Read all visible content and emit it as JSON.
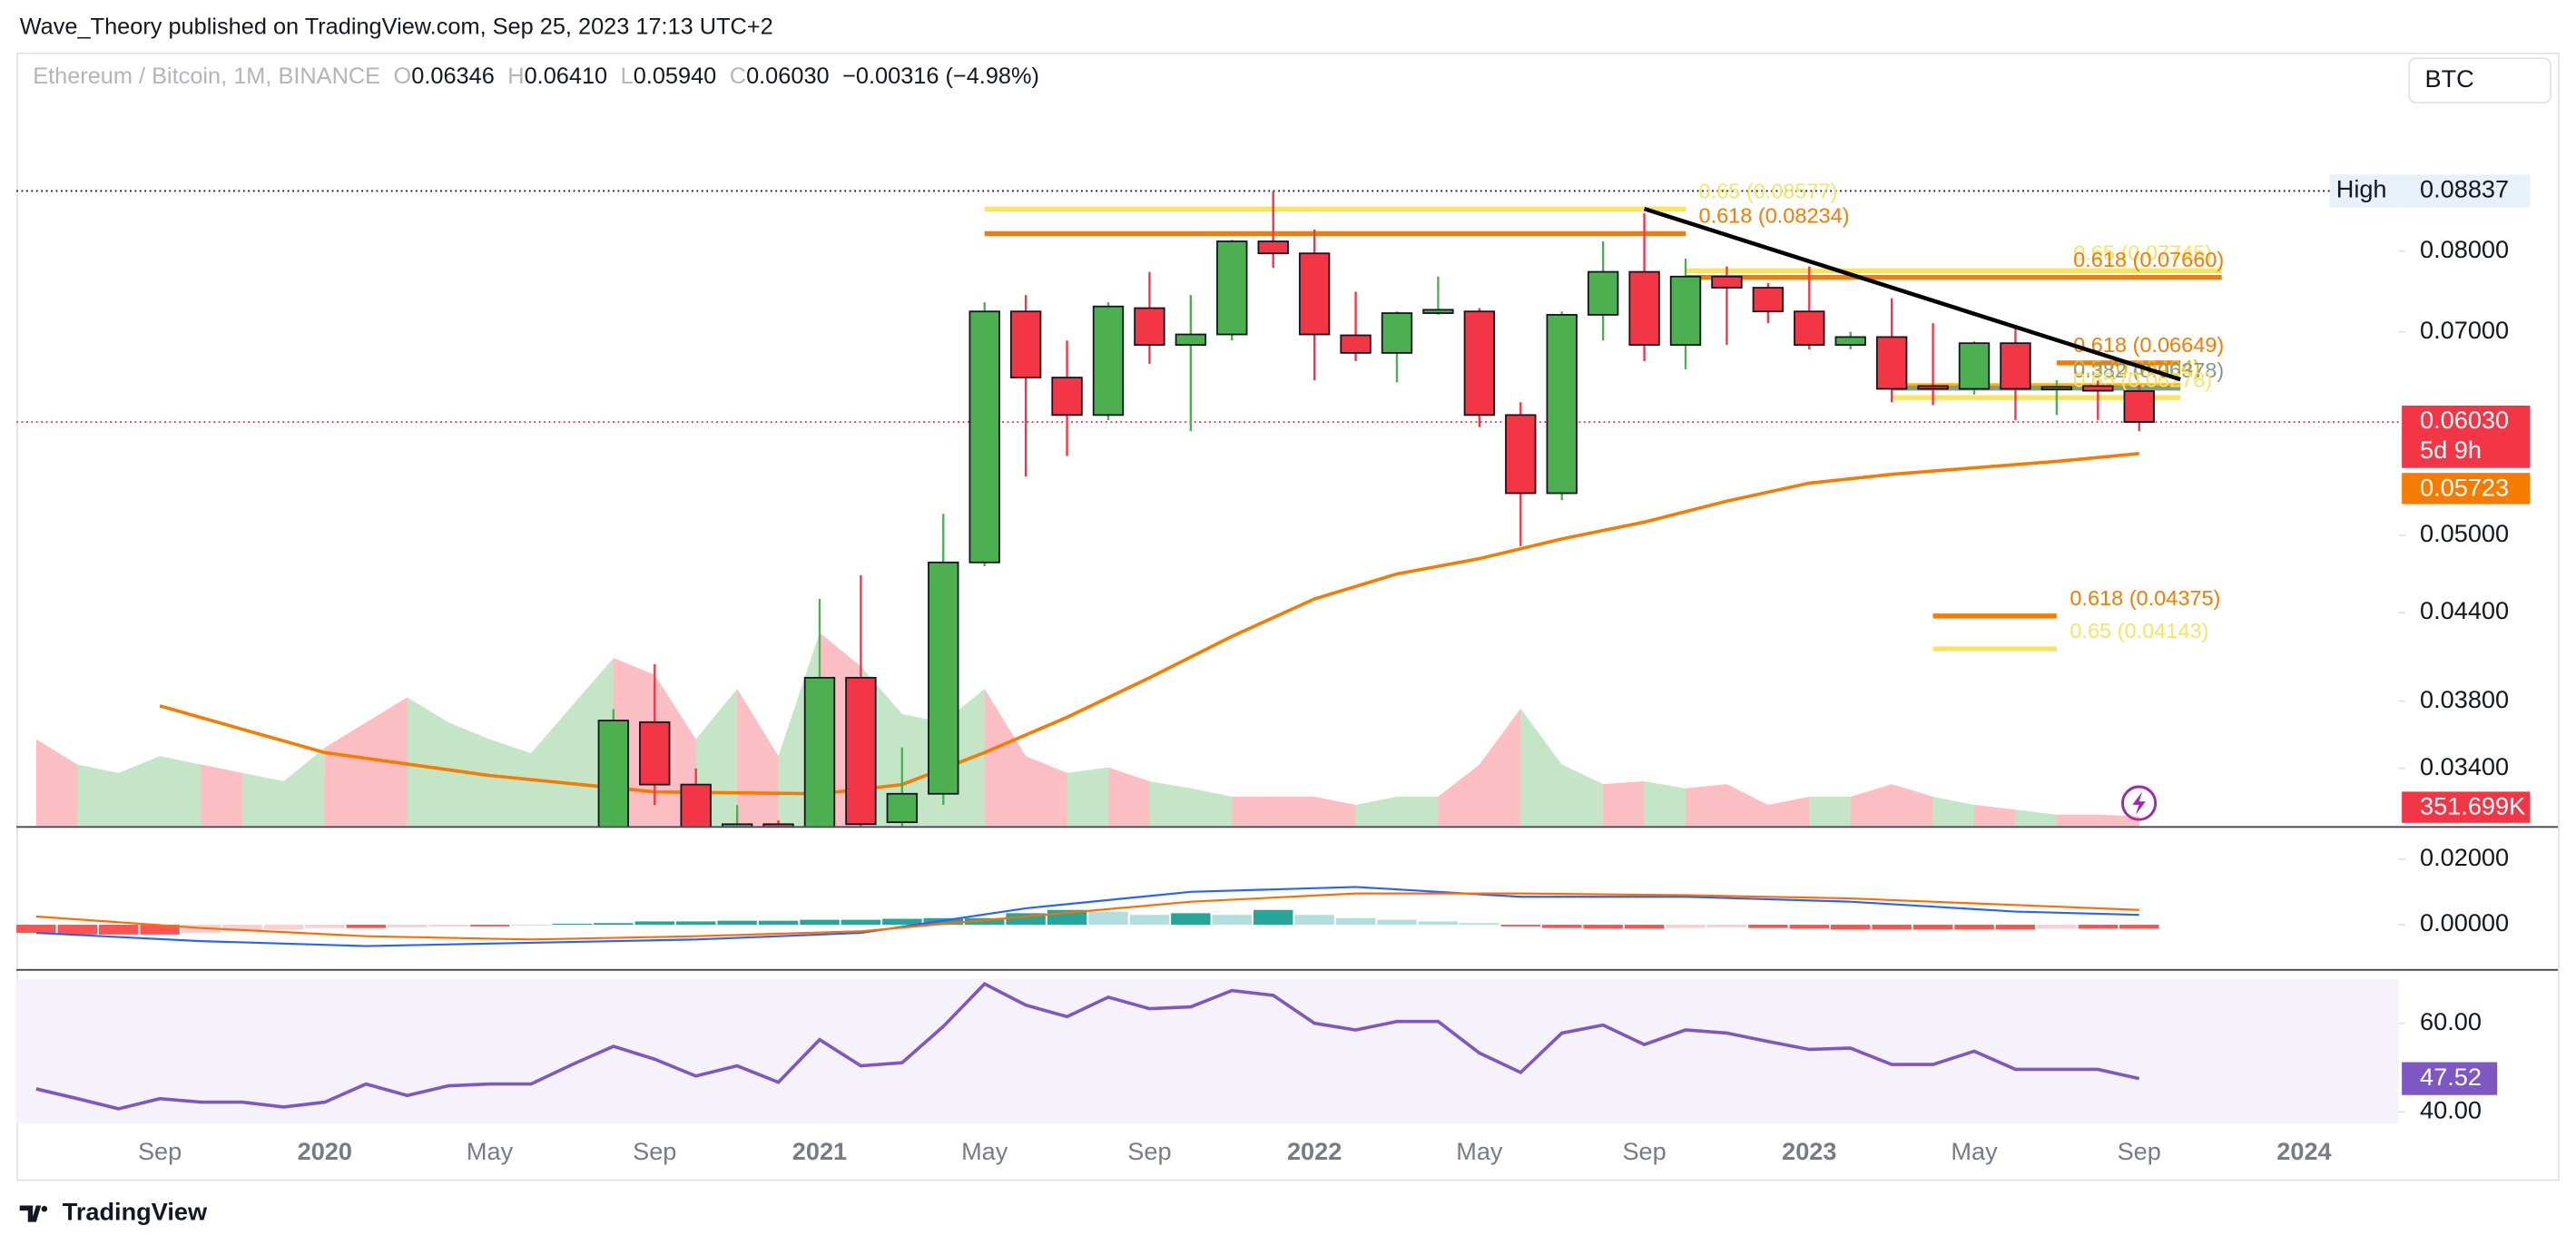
{
  "header": {
    "text": "Wave_Theory published on TradingView.com, Sep 25, 2023 17:13 UTC+2"
  },
  "footer": {
    "brand": "TradingView"
  },
  "toolbar": {
    "currency": "BTC"
  },
  "chart_data": {
    "type": "candlestick",
    "legend": {
      "symbol": "Ethereum / Bitcoin, 1M, BINANCE",
      "fields": [
        {
          "key": "O",
          "value": "0.06346"
        },
        {
          "key": "H",
          "value": "0.06410"
        },
        {
          "key": "L",
          "value": "0.05940"
        },
        {
          "key": "C",
          "value": "0.06030"
        }
      ],
      "change": "−0.00316 (−4.98%)"
    },
    "log_scale": true,
    "grid": false,
    "ylim": [
      0.0309,
      0.1111
    ],
    "yticks": [
      {
        "value": 0.08,
        "label": "0.08000"
      },
      {
        "value": 0.07,
        "label": "0.07000"
      },
      {
        "value": 0.05,
        "label": "0.05000"
      },
      {
        "value": 0.044,
        "label": "0.04400"
      },
      {
        "value": 0.038,
        "label": "0.03800"
      },
      {
        "value": 0.034,
        "label": "0.03400"
      }
    ],
    "xticks": [
      {
        "value": "2019-09",
        "label": "Sep"
      },
      {
        "value": "2020-01",
        "label": "2020"
      },
      {
        "value": "2020-05",
        "label": "May"
      },
      {
        "value": "2020-09",
        "label": "Sep"
      },
      {
        "value": "2021-01",
        "label": "2021"
      },
      {
        "value": "2021-05",
        "label": "May"
      },
      {
        "value": "2021-09",
        "label": "Sep"
      },
      {
        "value": "2022-01",
        "label": "2022"
      },
      {
        "value": "2022-05",
        "label": "May"
      },
      {
        "value": "2022-09",
        "label": "Sep"
      },
      {
        "value": "2023-01",
        "label": "2023"
      },
      {
        "value": "2023-05",
        "label": "May"
      },
      {
        "value": "2023-09",
        "label": "Sep"
      },
      {
        "value": "2024-01",
        "label": "2024"
      }
    ],
    "months": [
      "2019-06",
      "2019-07",
      "2019-08",
      "2019-09",
      "2019-10",
      "2019-11",
      "2019-12",
      "2020-01",
      "2020-02",
      "2020-03",
      "2020-04",
      "2020-05",
      "2020-06",
      "2020-07",
      "2020-08",
      "2020-09",
      "2020-10",
      "2020-11",
      "2020-12",
      "2021-01",
      "2021-02",
      "2021-03",
      "2021-04",
      "2021-05",
      "2021-06",
      "2021-07",
      "2021-08",
      "2021-09",
      "2021-10",
      "2021-11",
      "2021-12",
      "2022-01",
      "2022-02",
      "2022-03",
      "2022-04",
      "2022-05",
      "2022-06",
      "2022-07",
      "2022-08",
      "2022-09",
      "2022-10",
      "2022-11",
      "2022-12",
      "2023-01",
      "2023-02",
      "2023-03",
      "2023-04",
      "2023-05",
      "2023-06",
      "2023-07",
      "2023-08",
      "2023-09"
    ],
    "up_color": "#4caf50",
    "down_color": "#f23645",
    "x": [
      "2020-08",
      "2020-09",
      "2020-10",
      "2020-11",
      "2020-12",
      "2021-01",
      "2021-02",
      "2021-03",
      "2021-04",
      "2021-05",
      "2021-06",
      "2021-07",
      "2021-08",
      "2021-09",
      "2021-10",
      "2021-11",
      "2021-12",
      "2022-01",
      "2022-02",
      "2022-03",
      "2022-04",
      "2022-05",
      "2022-06",
      "2022-07",
      "2022-08",
      "2022-09",
      "2022-10",
      "2022-11",
      "2022-12",
      "2023-01",
      "2023-02",
      "2023-03",
      "2023-04",
      "2023-05",
      "2023-06",
      "2023-07",
      "2023-08",
      "2023-09"
    ],
    "open": [
      0.0295,
      0.0367,
      0.0331,
      0.03,
      0.031,
      0.03,
      0.0395,
      0.0311,
      0.0326,
      0.0478,
      0.0724,
      0.0649,
      0.061,
      0.0728,
      0.0685,
      0.0697,
      0.0813,
      0.0797,
      0.0696,
      0.0676,
      0.0722,
      0.0724,
      0.061,
      0.0536,
      0.072,
      0.0773,
      0.0685,
      0.0767,
      0.0753,
      0.0724,
      0.0685,
      0.0694,
      0.064,
      0.0637,
      0.0687,
      0.0637,
      0.064,
      0.06346
    ],
    "high": [
      0.0375,
      0.0404,
      0.034,
      0.032,
      0.0312,
      0.045,
      0.0468,
      0.0352,
      0.0518,
      0.0735,
      0.0744,
      0.069,
      0.0735,
      0.0773,
      0.0744,
      0.0815,
      0.08837,
      0.0829,
      0.0748,
      0.0724,
      0.0767,
      0.0728,
      0.0623,
      0.0724,
      0.0813,
      0.0852,
      0.079,
      0.078,
      0.0759,
      0.078,
      0.07,
      0.074,
      0.071,
      0.0689,
      0.0705,
      0.0646,
      0.0646,
      0.0641
    ],
    "low": [
      0.029,
      0.032,
      0.029,
      0.029,
      0.029,
      0.029,
      0.03,
      0.03,
      0.032,
      0.0475,
      0.0551,
      0.057,
      0.0605,
      0.0664,
      0.0594,
      0.069,
      0.0778,
      0.0646,
      0.0667,
      0.0644,
      0.072,
      0.0598,
      0.0491,
      0.053,
      0.069,
      0.0667,
      0.0658,
      0.0685,
      0.071,
      0.068,
      0.068,
      0.0623,
      0.062,
      0.0631,
      0.0605,
      0.061,
      0.0605,
      0.0594
    ],
    "close": [
      0.0368,
      0.0331,
      0.03,
      0.031,
      0.03,
      0.0395,
      0.031,
      0.0326,
      0.0478,
      0.0724,
      0.0649,
      0.061,
      0.073,
      0.0685,
      0.0697,
      0.0813,
      0.0797,
      0.0697,
      0.0676,
      0.0722,
      0.0726,
      0.061,
      0.0536,
      0.072,
      0.0773,
      0.0685,
      0.0767,
      0.0753,
      0.0724,
      0.0685,
      0.0694,
      0.0637,
      0.0637,
      0.0687,
      0.0637,
      0.0639,
      0.0635,
      0.0603
    ],
    "high_marker": {
      "label": "High",
      "value": 0.08837
    },
    "price_labels": [
      {
        "value": 0.0603,
        "label": "0.06030",
        "note": "5d 9h",
        "color": "#f23645"
      },
      {
        "value": 0.05723,
        "label": "0.05723",
        "color": "#f57c00"
      }
    ],
    "ema": {
      "color": "#f57c00",
      "x": [
        "2019-09",
        "2020-01",
        "2020-05",
        "2020-09",
        "2021-01",
        "2021-03",
        "2021-05",
        "2021-07",
        "2021-09",
        "2021-11",
        "2022-01",
        "2022-03",
        "2022-05",
        "2022-07",
        "2022-09",
        "2022-11",
        "2023-01",
        "2023-03",
        "2023-05",
        "2023-07",
        "2023-09"
      ],
      "values": [
        0.0377,
        0.0349,
        0.0336,
        0.0327,
        0.0326,
        0.0331,
        0.0349,
        0.037,
        0.0395,
        0.0423,
        0.045,
        0.0469,
        0.0481,
        0.0497,
        0.0511,
        0.0529,
        0.0545,
        0.0553,
        0.0559,
        0.0565,
        0.05723
      ]
    },
    "levels": [
      {
        "label": "0.65 (0.08577)",
        "value": 0.08577,
        "from": "2021-05",
        "to": "2022-10",
        "color": "#f7e463"
      },
      {
        "label": "0.618 (0.08234)",
        "value": 0.08234,
        "from": "2021-05",
        "to": "2022-10",
        "color": "#f57c00"
      },
      {
        "label": "0.65 (0.07745)",
        "value": 0.07745,
        "from": "2022-10",
        "to": "2023-11",
        "color": "#f7e463"
      },
      {
        "label": "0.618 (0.07660)",
        "value": 0.0766,
        "from": "2022-10",
        "to": "2023-11",
        "color": "#f57c00"
      },
      {
        "label": "0.618 (0.06649)",
        "value": 0.06649,
        "from": "2023-07",
        "to": "2023-10",
        "color": "#f57c00"
      },
      {
        "label": "0.5 (0.06404)",
        "value": 0.06404,
        "from": "2023-03",
        "to": "2023-10",
        "color": "#ffb300"
      },
      {
        "label": "0.382 (0.06378)",
        "value": 0.06378,
        "from": "2023-03",
        "to": "2023-10",
        "color": "#7f9c86"
      },
      {
        "label": "0.65 (0.06278)",
        "value": 0.06278,
        "from": "2023-03",
        "to": "2023-10",
        "color": "#f7e463"
      },
      {
        "label": "0.618 (0.04375)",
        "value": 0.04375,
        "from": "2023-04",
        "to": "2023-07",
        "color": "#f57c00"
      },
      {
        "label": "0.65 (0.04143)",
        "value": 0.04143,
        "from": "2023-04",
        "to": "2023-07",
        "color": "#f7e463"
      }
    ],
    "trendline": {
      "x": [
        "2022-09",
        "2023-10"
      ],
      "values": [
        0.0858,
        0.0647
      ],
      "color": "#000000"
    },
    "volume": {
      "ylim": [
        0,
        27600000
      ],
      "values": [
        3100000,
        2200000,
        1900000,
        2500000,
        2200000,
        1900000,
        1600000,
        2800000,
        3700000,
        4600000,
        3700000,
        3100000,
        2600000,
        4300000,
        6000000,
        5400000,
        3100000,
        4900000,
        2500000,
        6900000,
        5700000,
        4000000,
        3700000,
        4900000,
        2500000,
        1900000,
        2100000,
        1600000,
        1350000,
        1050000,
        1050000,
        1050000,
        760000,
        1050000,
        1050000,
        2200000,
        4200000,
        2200000,
        1500000,
        1600000,
        1350000,
        1500000,
        760000,
        1050000,
        1050000,
        1500000,
        1050000,
        760000,
        590000,
        410000,
        410000,
        351699
      ],
      "up": [
        false,
        false,
        true,
        true,
        true,
        false,
        true,
        true,
        false,
        false,
        true,
        true,
        true,
        true,
        true,
        false,
        false,
        true,
        false,
        true,
        false,
        true,
        true,
        true,
        false,
        false,
        true,
        false,
        true,
        true,
        false,
        false,
        false,
        true,
        true,
        false,
        false,
        true,
        true,
        false,
        true,
        false,
        false,
        false,
        true,
        false,
        false,
        true,
        false,
        true,
        false,
        false
      ],
      "last_label": {
        "value": 351699,
        "label": "351.699K"
      }
    },
    "macd": {
      "ylim": [
        -0.0125,
        0.029
      ],
      "yticks": [
        {
          "value": 0.02,
          "label": "0.02000"
        },
        {
          "value": 0,
          "label": "0.00000"
        }
      ],
      "x": [
        "2019-06",
        "2019-10",
        "2020-02",
        "2020-06",
        "2020-10",
        "2021-02",
        "2021-06",
        "2021-10",
        "2022-02",
        "2022-06",
        "2022-10",
        "2023-02",
        "2023-06",
        "2023-09"
      ],
      "macd": [
        -0.0025,
        -0.005,
        -0.0065,
        -0.0055,
        -0.0045,
        -0.0025,
        0.005,
        0.01,
        0.0115,
        0.0085,
        0.0085,
        0.007,
        0.004,
        0.003
      ],
      "signal": [
        0.0025,
        -0.001,
        -0.0035,
        -0.0045,
        -0.0035,
        -0.002,
        0.0025,
        0.007,
        0.0095,
        0.0095,
        0.009,
        0.008,
        0.006,
        0.0045
      ],
      "macd_color": "#2962ff",
      "signal_color": "#ff6d00",
      "histogram": [
        -0.0025,
        -0.003,
        -0.003,
        -0.003,
        -0.0025,
        -0.002,
        -0.0015,
        -0.001,
        -0.001,
        -0.0008,
        -0.0005,
        -0.0005,
        -0.0003,
        0.0003,
        0.0005,
        0.001,
        0.001,
        0.0012,
        0.0012,
        0.0015,
        0.0015,
        0.0018,
        0.002,
        0.002,
        0.0035,
        0.0045,
        0.004,
        0.003,
        0.0035,
        0.003,
        0.0045,
        0.003,
        0.002,
        0.0015,
        0.001,
        0.0005,
        -0.0005,
        -0.001,
        -0.0012,
        -0.0012,
        -0.001,
        -0.0008,
        -0.001,
        -0.0012,
        -0.0015,
        -0.0015,
        -0.0015,
        -0.0015,
        -0.0015,
        -0.0012,
        -0.0012,
        -0.0012
      ]
    },
    "rsi": {
      "ylim": [
        37.4,
        71.5
      ],
      "yticks": [
        {
          "value": 60,
          "label": "60.00"
        },
        {
          "value": 40,
          "label": "40.00"
        }
      ],
      "band": [
        30,
        70
      ],
      "color": "#7e57c2",
      "values": [
        45.2,
        43,
        40.7,
        43,
        42.2,
        42.2,
        41.1,
        42.2,
        46.3,
        43.7,
        45.9,
        46.3,
        46.3,
        50.7,
        54.8,
        51.9,
        48.1,
        50.4,
        46.7,
        56.3,
        50.4,
        51.1,
        59.3,
        68.9,
        64.1,
        61.5,
        65.9,
        63.3,
        63.7,
        67.4,
        66.3,
        60,
        58.5,
        60.4,
        60.4,
        53.3,
        48.9,
        57.8,
        59.6,
        55.2,
        58.5,
        57.8,
        55.9,
        54.1,
        54.4,
        50.7,
        50.7,
        53.7,
        49.6,
        49.6,
        49.6,
        47.52
      ]
    }
  }
}
